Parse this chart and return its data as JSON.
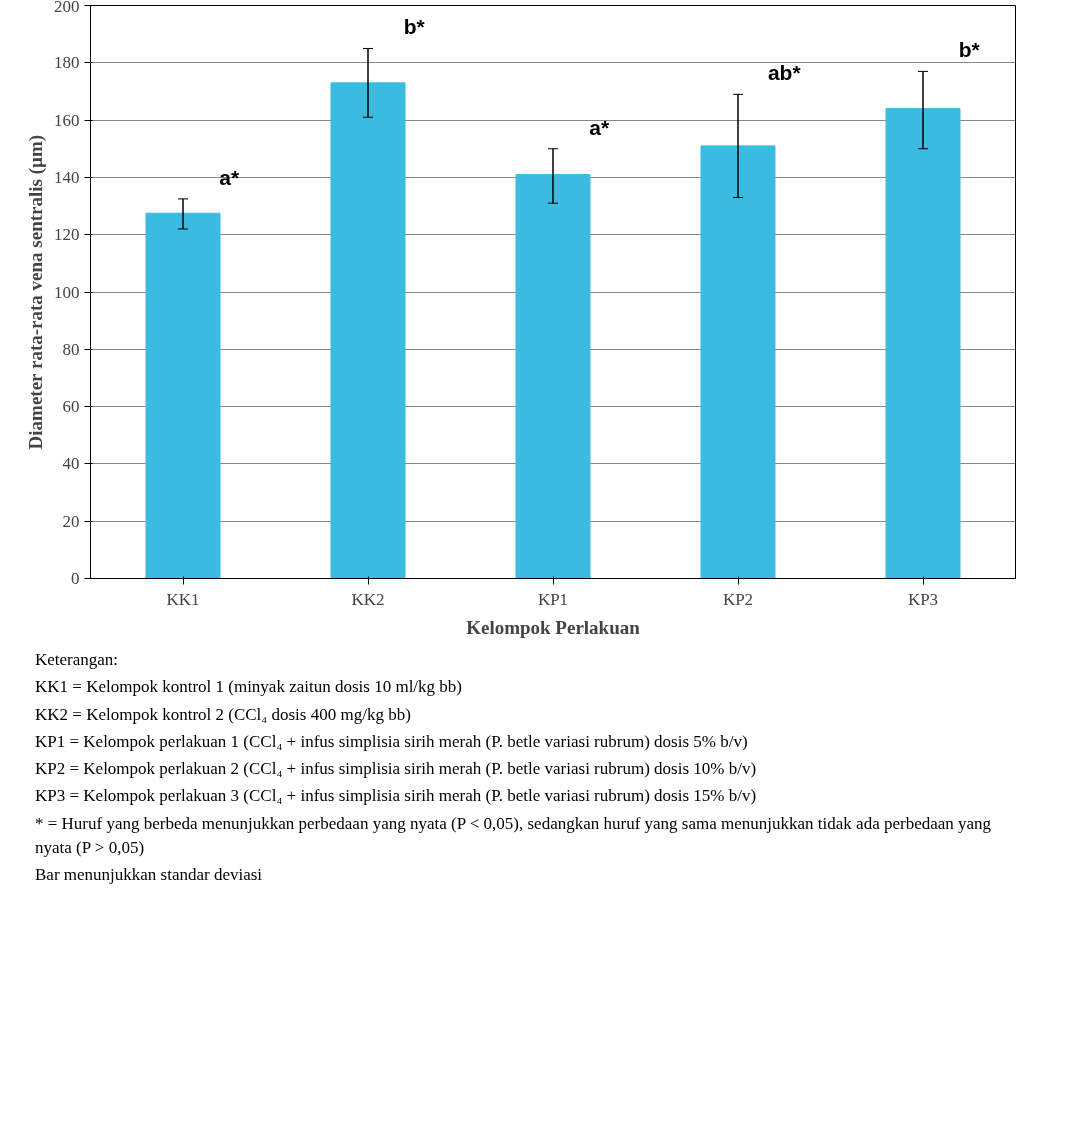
{
  "chart_data": {
    "type": "bar",
    "xlabel": "Kelompok Perlakuan",
    "ylabel": "Diameter rata-rata vena sentralis (µm)",
    "categories": [
      "KK1",
      "KK2",
      "KP1",
      "KP2",
      "KP3"
    ],
    "values": [
      127.5,
      173,
      141,
      151,
      164
    ],
    "errors": [
      [
        122,
        132.5
      ],
      [
        161,
        185
      ],
      [
        131,
        150
      ],
      [
        133,
        169
      ],
      [
        150,
        177
      ]
    ],
    "color": "#3cbbe0",
    "ylim": [
      0,
      200
    ],
    "yticks": [
      0,
      20,
      40,
      60,
      80,
      100,
      120,
      140,
      160,
      180,
      200
    ],
    "grid": "y",
    "annotations": [
      "a*",
      "b*",
      "a*",
      "ab*",
      "b*",
      "Keterangan:",
      "KK1 = Kelompok kontrol 1 (minyak zaitun dosis 10 ml/kg bb)",
      "KK2 = Kelompok kontrol 2 (CCl₄ dosis 400 mg/kg bb)",
      "KP1 = Kelompok perlakuan 1 (CCl₄ + infus simplisia sirih merah (P. betle variasi rubrum) dosis 5% b/v)",
      "KP2 = Kelompok perlakuan 2 (CCl₄ + infus simplisia sirih merah (P. betle variasi rubrum) dosis 10% b/v)",
      "KP3 = Kelompok perlakuan 3 (CCl₄ + infus simplisia sirih merah (P. betle variasi rubrum) dosis 15% b/v)",
      "* = Huruf yang berbeda menunjukkan perbedaan yang nyata (P < 0,05), sedangkan huruf yang sama menunjukkan tidak ada perbedaan yang nyata (P > 0,05)",
      "Bar menunjukkan standar deviasi"
    ]
  }
}
